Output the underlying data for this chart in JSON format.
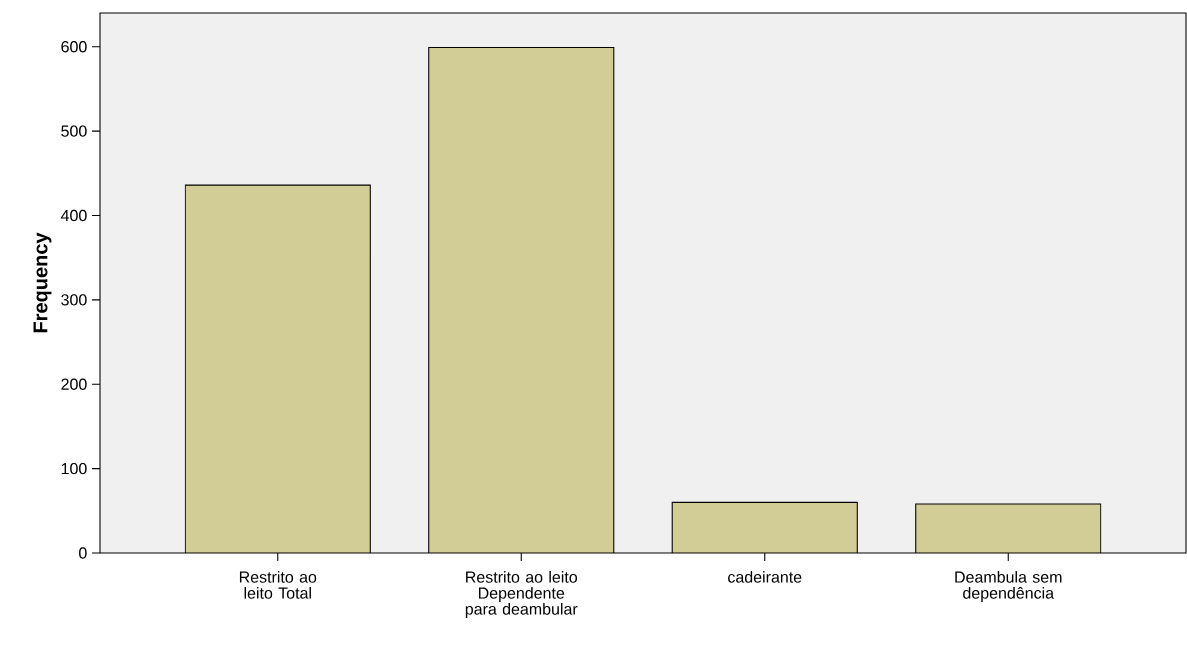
{
  "chart_data": {
    "type": "bar",
    "ylabel": "Frequency",
    "categories": [
      "Restrito ao leito Total",
      "Restrito ao leito Dependente para deambular",
      "cadeirante",
      "Deambula sem dependência"
    ],
    "values": [
      436,
      599,
      60,
      58
    ],
    "color": "#d2cd96",
    "ylim": [
      0,
      640
    ],
    "yticks": [
      0,
      100,
      200,
      300,
      400,
      500,
      600
    ]
  }
}
